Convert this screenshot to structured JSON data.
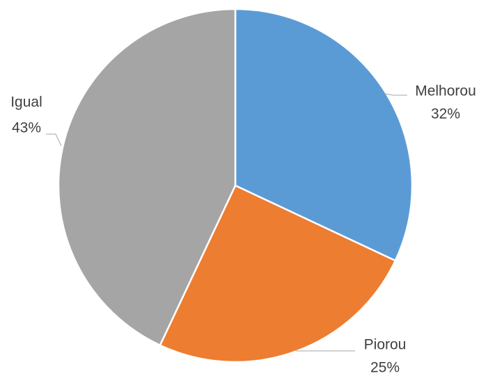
{
  "chart_data": {
    "type": "pie",
    "categories": [
      "Melhorou",
      "Piorou",
      "Igual"
    ],
    "values": [
      32,
      25,
      43
    ],
    "value_labels": [
      "32%",
      "25%",
      "43%"
    ],
    "colors": [
      "#5b9bd5",
      "#ed7d31",
      "#a5a5a5"
    ]
  }
}
